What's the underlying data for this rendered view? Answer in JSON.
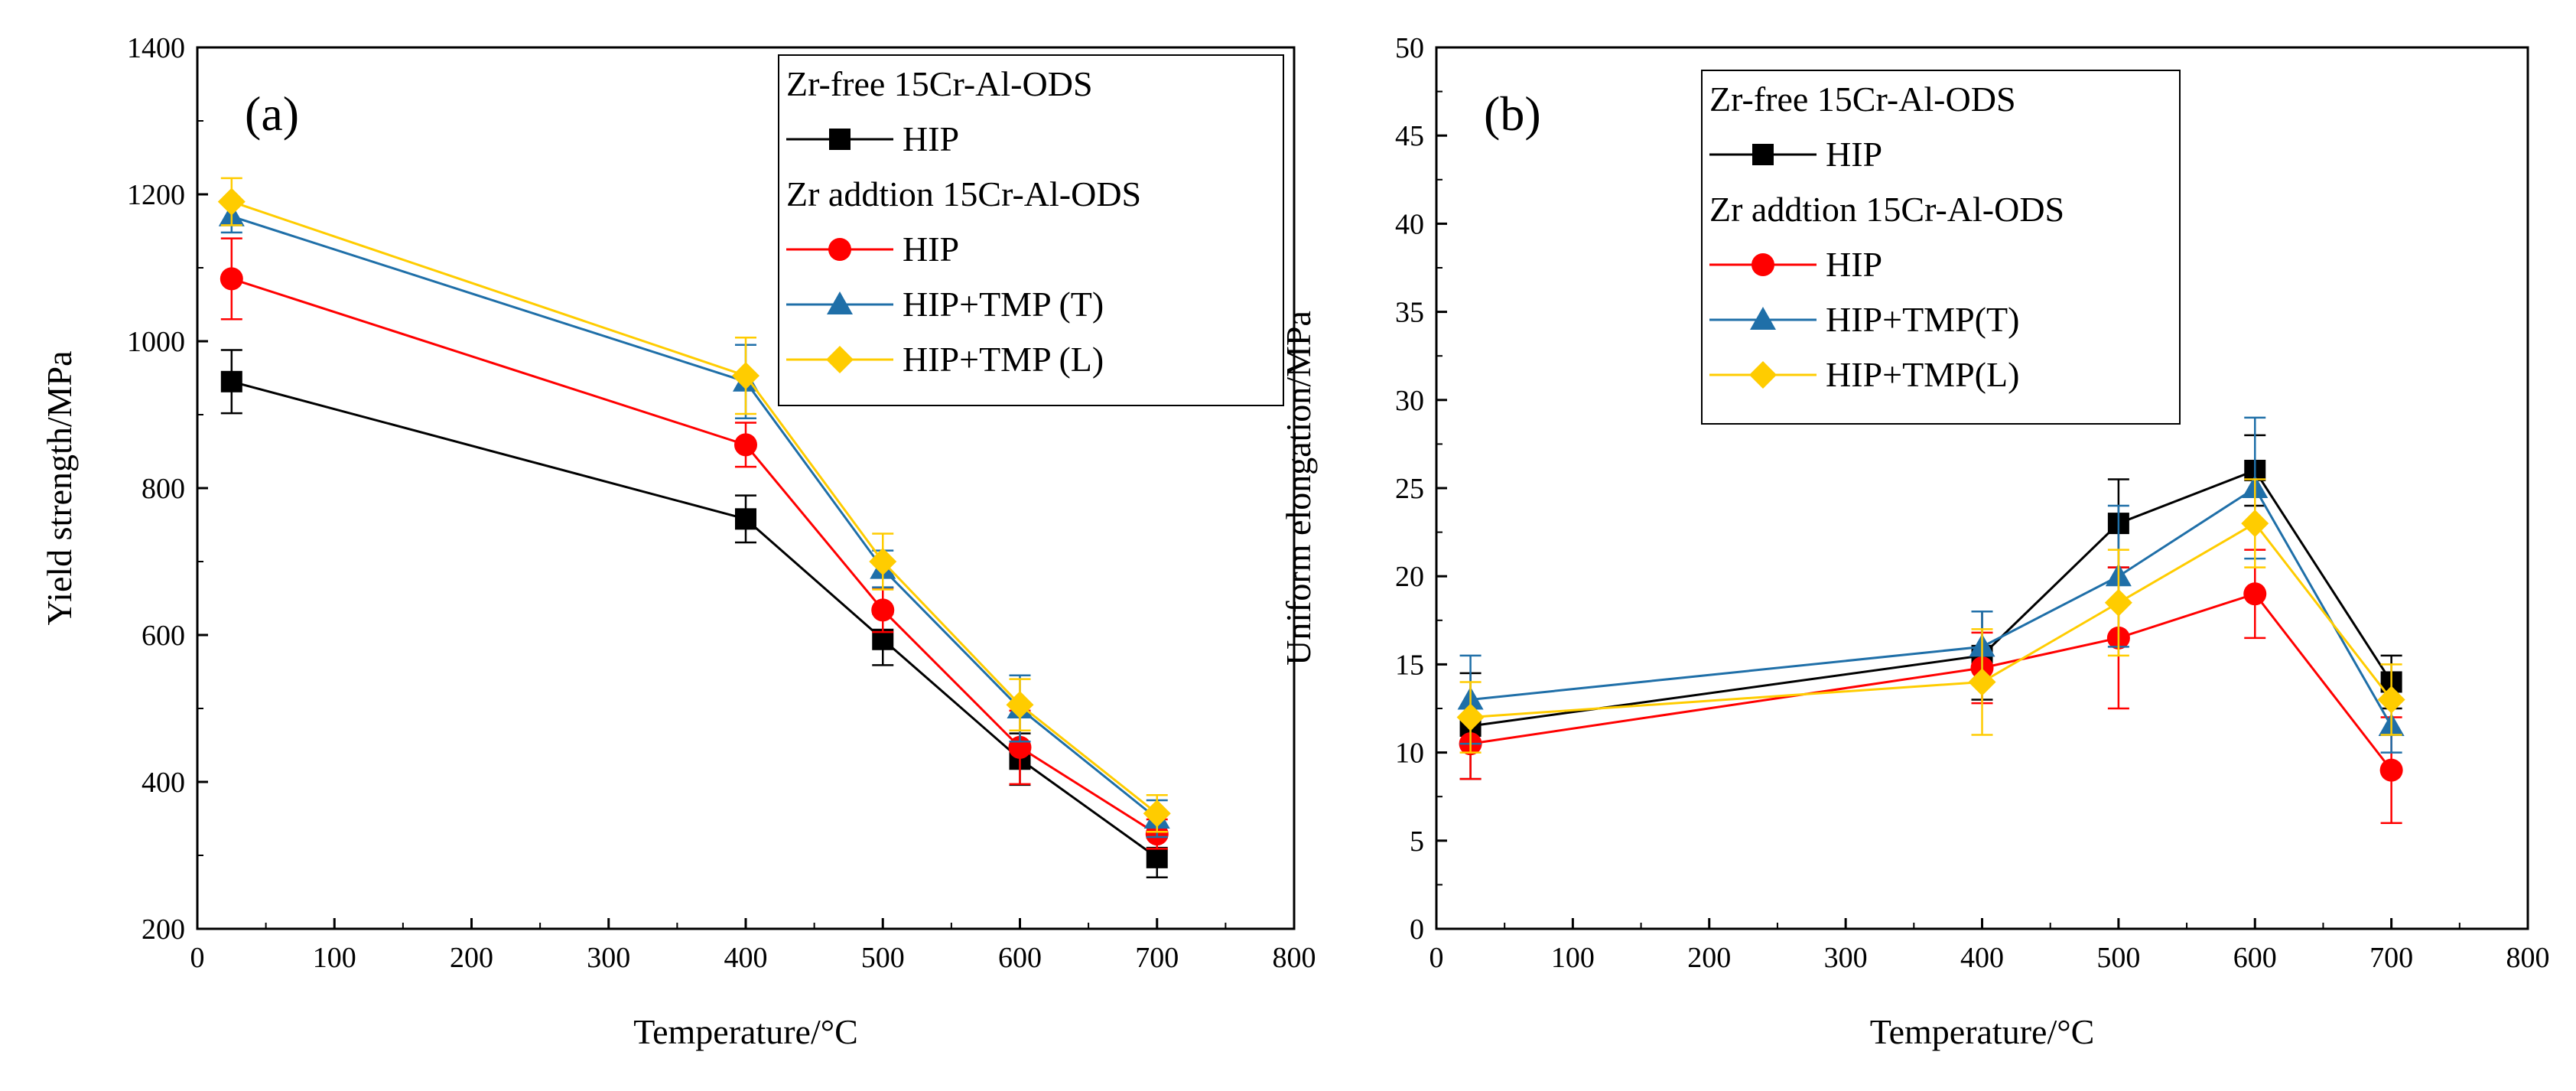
{
  "chart_data": [
    {
      "type": "line",
      "panel_label": "(a)",
      "xlabel": "Temperature/°C",
      "ylabel": "Yield strength/MPa",
      "xlim": [
        0,
        800
      ],
      "ylim": [
        200,
        1400
      ],
      "xticks": [
        0,
        100,
        200,
        300,
        400,
        500,
        600,
        700,
        800
      ],
      "yticks": [
        200,
        400,
        600,
        800,
        1000,
        1200,
        1400
      ],
      "x": [
        25,
        400,
        500,
        600,
        700
      ],
      "legend": {
        "position": "top-right",
        "group1_title": "Zr-free 15Cr-Al-ODS",
        "group2_title": "Zr addtion 15Cr-Al-ODS"
      },
      "series": [
        {
          "name": "HIP",
          "group": 1,
          "color": "#000000",
          "marker": "square",
          "values": [
            945,
            758,
            594,
            431,
            297
          ],
          "errors": [
            43,
            32,
            35,
            35,
            27
          ]
        },
        {
          "name": "HIP",
          "group": 2,
          "color": "#ff0000",
          "marker": "circle",
          "values": [
            1085,
            859,
            634,
            447,
            329
          ],
          "errors": [
            55,
            30,
            30,
            50,
            20
          ]
        },
        {
          "name": "HIP+TMP (T)",
          "group": 2,
          "color": "#1f6fa8",
          "marker": "triangle",
          "values": [
            1170,
            945,
            690,
            500,
            350
          ],
          "errors": [
            22,
            50,
            25,
            45,
            25
          ]
        },
        {
          "name": "HIP+TMP (L)",
          "group": 2,
          "color": "#ffcc00",
          "marker": "diamond",
          "values": [
            1190,
            953,
            700,
            505,
            357
          ],
          "errors": [
            32,
            52,
            38,
            35,
            25
          ]
        }
      ]
    },
    {
      "type": "line",
      "panel_label": "(b)",
      "xlabel": "Temperature/°C",
      "ylabel": "Uniform elongation/MPa",
      "xlim": [
        0,
        800
      ],
      "ylim": [
        0,
        50
      ],
      "xticks": [
        0,
        100,
        200,
        300,
        400,
        500,
        600,
        700,
        800
      ],
      "yticks": [
        0,
        5,
        10,
        15,
        20,
        25,
        30,
        35,
        40,
        45,
        50
      ],
      "x": [
        25,
        400,
        500,
        600,
        700
      ],
      "legend": {
        "position": "top-left",
        "group1_title": "Zr-free 15Cr-Al-ODS",
        "group2_title": "Zr addtion 15Cr-Al-ODS"
      },
      "series": [
        {
          "name": "HIP",
          "group": 1,
          "color": "#000000",
          "marker": "square",
          "values": [
            11.5,
            15.5,
            23,
            26,
            14
          ],
          "errors": [
            3,
            2.5,
            2.5,
            2,
            1.5
          ]
        },
        {
          "name": "HIP",
          "group": 2,
          "color": "#ff0000",
          "marker": "circle",
          "values": [
            10.5,
            14.8,
            16.5,
            19,
            9
          ],
          "errors": [
            2,
            2,
            4,
            2.5,
            3
          ]
        },
        {
          "name": "HIP+TMP(T)",
          "group": 2,
          "color": "#1f6fa8",
          "marker": "triangle",
          "values": [
            13,
            16,
            20,
            25,
            11.5
          ],
          "errors": [
            2.5,
            2,
            4,
            4,
            1.5
          ]
        },
        {
          "name": "HIP+TMP(L)",
          "group": 2,
          "color": "#ffcc00",
          "marker": "diamond",
          "values": [
            12,
            14,
            18.5,
            23,
            13
          ],
          "errors": [
            2,
            3,
            3,
            2.5,
            2
          ]
        }
      ]
    }
  ]
}
